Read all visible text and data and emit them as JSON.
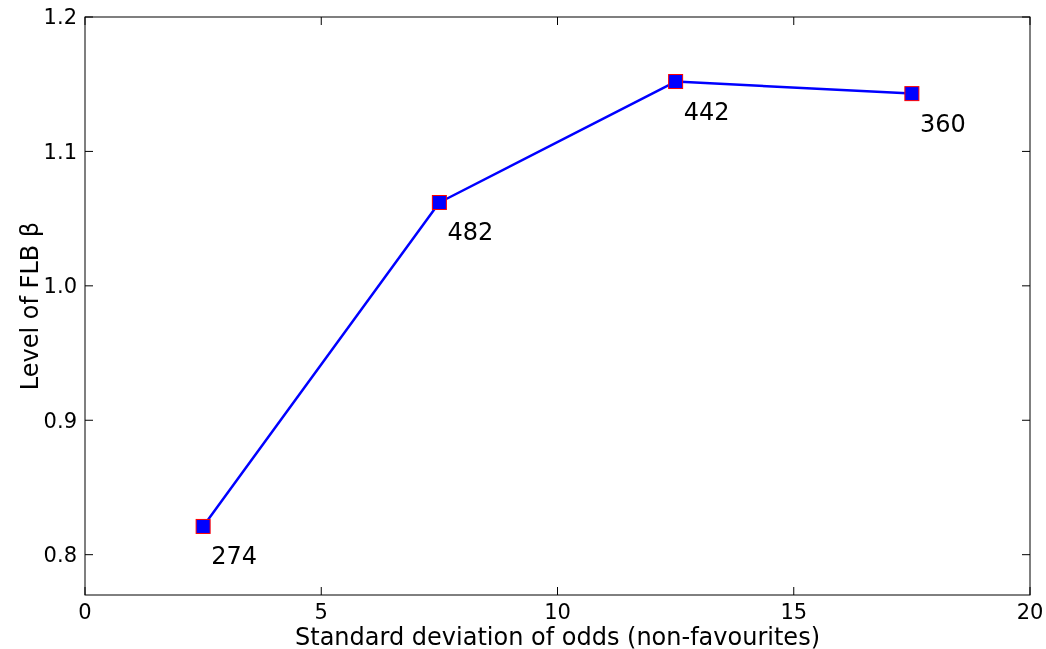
{
  "chart_data": {
    "type": "line",
    "xlabel": "Standard deviation of odds (non-favourites)",
    "ylabel": "Level of FLB β",
    "x": [
      2.5,
      7.5,
      12.5,
      17.5
    ],
    "series": [
      {
        "color": "#0000ff",
        "values": [
          0.821,
          1.062,
          1.152,
          1.143
        ]
      }
    ],
    "marker": "square",
    "line_style": "solid",
    "grid": false,
    "xlim": [
      0,
      20
    ],
    "xticks": [
      0,
      5,
      10,
      15,
      20
    ],
    "ylim": [
      0.77,
      1.2
    ],
    "yticks": [
      {
        "value": 0.8,
        "label": "0.8"
      },
      {
        "value": 0.9,
        "label": "0.9"
      },
      {
        "value": 1.0,
        "label": "1.0"
      },
      {
        "value": 1.1,
        "label": "1.1"
      },
      {
        "value": 1.2,
        "label": "1.2"
      }
    ],
    "annotations": [
      {
        "text": "274",
        "x": 2.5,
        "y": 0.821
      },
      {
        "text": "482",
        "x": 7.5,
        "y": 1.062
      },
      {
        "text": "442",
        "x": 12.5,
        "y": 1.152
      },
      {
        "text": "360",
        "x": 17.5,
        "y": 1.143
      }
    ]
  }
}
